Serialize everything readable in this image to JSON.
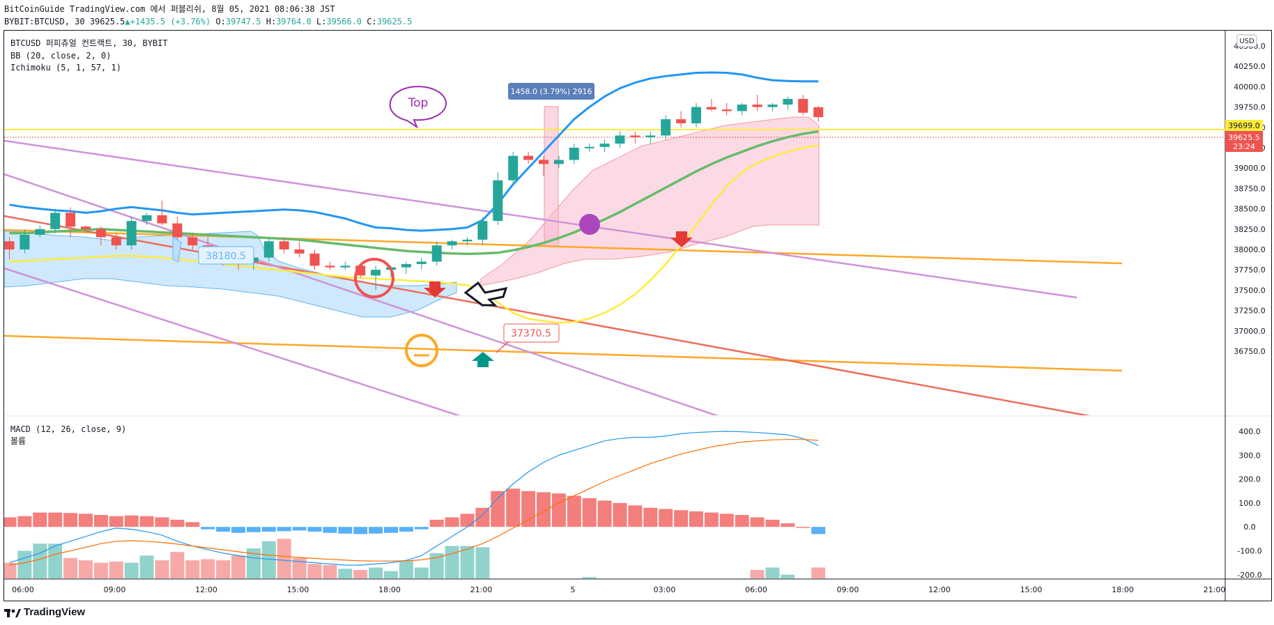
{
  "header": {
    "line1": "BitCoinGuide TradingView.com 에서 퍼블리쉬, 8월 05, 2021 08:06:38 JST",
    "symbol": "BYBIT:BTCUSD, 30",
    "last": "39625.5",
    "change": "+1435.5 (+3.76%)",
    "o_label": "O:",
    "o": "39747.5",
    "h_label": "H:",
    "h": "39764.0",
    "l_label": "L:",
    "l": "39566.0",
    "c_label": "C:",
    "c": "39625.5"
  },
  "legend": {
    "title": "BTCUSD 퍼피츄얼 컨트랙트, 30, BYBIT",
    "bb": "BB (20, close, 2, 0)",
    "ichimoku": "Ichimoku (5, 1, 57, 1)",
    "macd": "MACD (12, 26, close, 9)",
    "volume": "볼륨"
  },
  "currency": "USD",
  "price_tags": {
    "yellow_level": "39699.0",
    "last_price": "39625.5",
    "countdown": "23:24"
  },
  "annotations": {
    "measure": "1458.0 (3.79%) 2916",
    "top_bubble": "Top",
    "label_low": "38180.5",
    "label_bottom": "37370.5"
  },
  "brand": "TradingView",
  "colors": {
    "bull": "#26a69a",
    "bear": "#ef5350",
    "bb_upper": "#2196f3",
    "bb_mid": "#66bb6a",
    "bb_lower": "#ffeb3b",
    "trend_orange": "#ffa726",
    "trend_red": "#ef6c5a",
    "trend_violet": "#ce93d8",
    "macd_line": "#2196f3",
    "signal_line": "#ff6d00"
  },
  "chart_data": {
    "type": "candlestick",
    "x_ticks": [
      "06:00",
      "09:00",
      "12:00",
      "15:00",
      "18:00",
      "21:00",
      "5",
      "03:00",
      "06:00",
      "09:00",
      "12:00",
      "15:00",
      "18:00",
      "21:00"
    ],
    "price_ticks": [
      "40500.0",
      "40250.0",
      "40000.0",
      "39750.0",
      "39500.0",
      "39250.0",
      "39000.0",
      "38750.0",
      "38500.0",
      "38250.0",
      "38000.0",
      "37750.0",
      "37500.0",
      "37250.0",
      "37000.0",
      "36750.0"
    ],
    "price_range": [
      36750,
      40600
    ],
    "candles": [
      [
        38100,
        38150,
        37880,
        38000
      ],
      [
        38000,
        38250,
        37950,
        38180
      ],
      [
        38180,
        38300,
        38150,
        38250
      ],
      [
        38250,
        38500,
        38200,
        38450
      ],
      [
        38450,
        38520,
        38150,
        38280
      ],
      [
        38280,
        38300,
        38200,
        38250
      ],
      [
        38250,
        38280,
        38050,
        38150
      ],
      [
        38150,
        38200,
        38000,
        38050
      ],
      [
        38050,
        38400,
        38000,
        38350
      ],
      [
        38350,
        38450,
        38300,
        38420
      ],
      [
        38420,
        38600,
        38300,
        38320
      ],
      [
        38320,
        38400,
        38100,
        38150
      ],
      [
        38150,
        38200,
        38000,
        38050
      ],
      [
        38050,
        38150,
        37900,
        37950
      ],
      [
        37950,
        38000,
        37800,
        37900
      ],
      [
        37900,
        38000,
        37750,
        37850
      ],
      [
        37850,
        37950,
        37750,
        37900
      ],
      [
        37900,
        38150,
        37850,
        38100
      ],
      [
        38100,
        38150,
        37950,
        38000
      ],
      [
        38000,
        38100,
        37900,
        37950
      ],
      [
        37950,
        38000,
        37750,
        37800
      ],
      [
        37800,
        37850,
        37750,
        37780
      ],
      [
        37780,
        37850,
        37750,
        37800
      ],
      [
        37800,
        37820,
        37650,
        37680
      ],
      [
        37680,
        37800,
        37500,
        37750
      ],
      [
        37750,
        37800,
        37650,
        37780
      ],
      [
        37780,
        37850,
        37700,
        37820
      ],
      [
        37820,
        37900,
        37750,
        37850
      ],
      [
        37850,
        38100,
        37800,
        38050
      ],
      [
        38050,
        38120,
        38000,
        38100
      ],
      [
        38100,
        38150,
        38050,
        38120
      ],
      [
        38120,
        38400,
        38050,
        38350
      ],
      [
        38350,
        38950,
        38300,
        38850
      ],
      [
        38850,
        39200,
        38800,
        39150
      ],
      [
        39150,
        39200,
        39050,
        39100
      ],
      [
        39100,
        39150,
        38900,
        39050
      ],
      [
        39050,
        39150,
        39000,
        39100
      ],
      [
        39100,
        39300,
        39050,
        39250
      ],
      [
        39250,
        39300,
        39200,
        39260
      ],
      [
        39260,
        39350,
        39200,
        39300
      ],
      [
        39300,
        39450,
        39250,
        39400
      ],
      [
        39400,
        39450,
        39300,
        39380
      ],
      [
        39380,
        39450,
        39300,
        39400
      ],
      [
        39400,
        39650,
        39350,
        39600
      ],
      [
        39600,
        39700,
        39500,
        39550
      ],
      [
        39550,
        39800,
        39500,
        39750
      ],
      [
        39750,
        39850,
        39700,
        39720
      ],
      [
        39720,
        39800,
        39650,
        39700
      ],
      [
        39700,
        39800,
        39650,
        39780
      ],
      [
        39780,
        39900,
        39700,
        39750
      ],
      [
        39750,
        39800,
        39700,
        39780
      ],
      [
        39780,
        39880,
        39720,
        39850
      ],
      [
        39850,
        39900,
        39650,
        39680
      ],
      [
        39747.5,
        39764,
        39566,
        39625.5
      ]
    ],
    "bb_upper": [
      38550,
      38520,
      38500,
      38480,
      38470,
      38450,
      38470,
      38500,
      38520,
      38500,
      38480,
      38450,
      38430,
      38440,
      38450,
      38460,
      38470,
      38480,
      38490,
      38480,
      38460,
      38420,
      38380,
      38320,
      38270,
      38260,
      38240,
      38230,
      38240,
      38250,
      38270,
      38360,
      38560,
      38800,
      39000,
      39200,
      39400,
      39600,
      39750,
      39880,
      39980,
      40050,
      40100,
      40130,
      40150,
      40170,
      40175,
      40170,
      40150,
      40110,
      40080,
      40070,
      40065,
      40065
    ],
    "bb_mid": [
      38200,
      38200,
      38210,
      38220,
      38230,
      38240,
      38250,
      38240,
      38230,
      38220,
      38210,
      38200,
      38190,
      38180,
      38170,
      38160,
      38150,
      38140,
      38130,
      38120,
      38100,
      38080,
      38060,
      38040,
      38020,
      38000,
      37980,
      37970,
      37960,
      37950,
      37945,
      37950,
      37960,
      37990,
      38030,
      38080,
      38140,
      38210,
      38290,
      38370,
      38460,
      38560,
      38660,
      38760,
      38860,
      38960,
      39050,
      39130,
      39200,
      39270,
      39330,
      39380,
      39420,
      39450
    ],
    "bb_lower": [
      37850,
      37860,
      37870,
      37880,
      37890,
      37900,
      37910,
      37920,
      37920,
      37910,
      37900,
      37880,
      37860,
      37840,
      37820,
      37800,
      37780,
      37760,
      37740,
      37720,
      37700,
      37680,
      37660,
      37650,
      37640,
      37630,
      37620,
      37610,
      37600,
      37580,
      37560,
      37480,
      37350,
      37220,
      37150,
      37120,
      37100,
      37110,
      37150,
      37220,
      37320,
      37450,
      37620,
      37820,
      38050,
      38300,
      38550,
      38780,
      38950,
      39060,
      39140,
      39200,
      39250,
      39280
    ],
    "macd_ticks": [
      "400.0",
      "300.0",
      "200.0",
      "100.0",
      "0.0",
      "-100.0",
      "-200.0"
    ],
    "macd_range": [
      -220,
      420
    ],
    "macd_hist": [
      40,
      45,
      60,
      60,
      58,
      55,
      50,
      45,
      48,
      45,
      40,
      30,
      20,
      -10,
      -20,
      -25,
      -22,
      -20,
      -18,
      -15,
      -20,
      -25,
      -28,
      -30,
      -28,
      -25,
      -20,
      -10,
      30,
      40,
      55,
      80,
      150,
      160,
      150,
      145,
      140,
      130,
      120,
      110,
      100,
      90,
      80,
      75,
      70,
      65,
      60,
      55,
      50,
      40,
      30,
      15,
      0,
      -30
    ],
    "macd_line": [
      -150,
      -130,
      -110,
      -80,
      -60,
      -40,
      -20,
      -5,
      -10,
      -20,
      -35,
      -60,
      -80,
      -95,
      -110,
      -120,
      -130,
      -135,
      -140,
      -145,
      -150,
      -155,
      -160,
      -160,
      -155,
      -150,
      -140,
      -120,
      -80,
      -40,
      0,
      50,
      120,
      180,
      230,
      270,
      300,
      320,
      340,
      360,
      370,
      375,
      375,
      380,
      390,
      395,
      398,
      400,
      398,
      395,
      390,
      385,
      370,
      340
    ],
    "signal_line": [
      -160,
      -150,
      -135,
      -115,
      -100,
      -85,
      -70,
      -60,
      -58,
      -60,
      -65,
      -72,
      -80,
      -88,
      -96,
      -104,
      -112,
      -118,
      -123,
      -128,
      -132,
      -136,
      -139,
      -142,
      -143,
      -143,
      -142,
      -138,
      -128,
      -112,
      -93,
      -70,
      -40,
      -5,
      30,
      65,
      100,
      130,
      160,
      190,
      215,
      240,
      265,
      285,
      305,
      320,
      335,
      345,
      355,
      360,
      364,
      366,
      366,
      362
    ],
    "volume": [
      -150,
      -100,
      -70,
      -70,
      -130,
      -140,
      -150,
      -145,
      -150,
      -120,
      -140,
      -105,
      -140,
      -135,
      -140,
      -120,
      -90,
      -60,
      -50,
      -130,
      -155,
      -160,
      -175,
      -180,
      -170,
      -185,
      -140,
      -170,
      -110,
      -80,
      -80,
      -85,
      -240,
      -265,
      -250,
      -240,
      -225,
      -220,
      -210,
      -240,
      -260,
      -280,
      -260,
      -270,
      -250,
      -265,
      -245,
      -230,
      -215,
      -180,
      -170,
      -200,
      -215,
      -170
    ]
  }
}
